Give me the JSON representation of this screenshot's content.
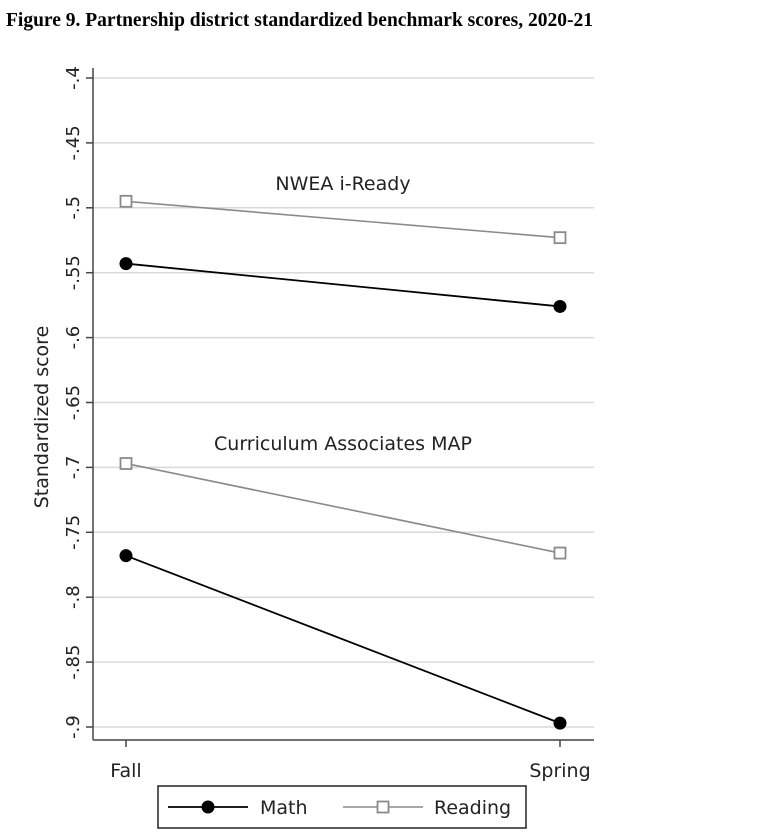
{
  "figure_title": "Figure 9. Partnership district standardized benchmark scores, 2020-21",
  "chart_data": {
    "type": "line",
    "title": "Figure 9. Partnership district standardized benchmark scores, 2020-21",
    "xlabel": "",
    "ylabel": "Standardized score",
    "categories": [
      "Fall",
      "Spring"
    ],
    "ylim": [
      -0.9,
      -0.4
    ],
    "yticks": [
      -0.4,
      -0.45,
      -0.5,
      -0.55,
      -0.6,
      -0.65,
      -0.7,
      -0.75,
      -0.8,
      -0.85,
      -0.9
    ],
    "ytick_labels": [
      "-.4",
      "-.45",
      "-.5",
      "-.55",
      "-.6",
      "-.65",
      "-.7",
      "-.75",
      "-.8",
      "-.85",
      "-.9"
    ],
    "grid": true,
    "legend_position": "bottom",
    "legend": [
      "Math",
      "Reading"
    ],
    "groups": [
      {
        "label": "NWEA i-Ready",
        "series": [
          {
            "name": "Reading",
            "values": [
              -0.495,
              -0.523
            ]
          },
          {
            "name": "Math",
            "values": [
              -0.543,
              -0.576
            ]
          }
        ]
      },
      {
        "label": "Curriculum Associates MAP",
        "series": [
          {
            "name": "Reading",
            "values": [
              -0.697,
              -0.766
            ]
          },
          {
            "name": "Math",
            "values": [
              -0.768,
              -0.897
            ]
          }
        ]
      }
    ],
    "colors": {
      "Math": "#000000",
      "Reading": "#8a8a8a",
      "grid": "#d9d9d9",
      "axis": "#444444"
    }
  }
}
